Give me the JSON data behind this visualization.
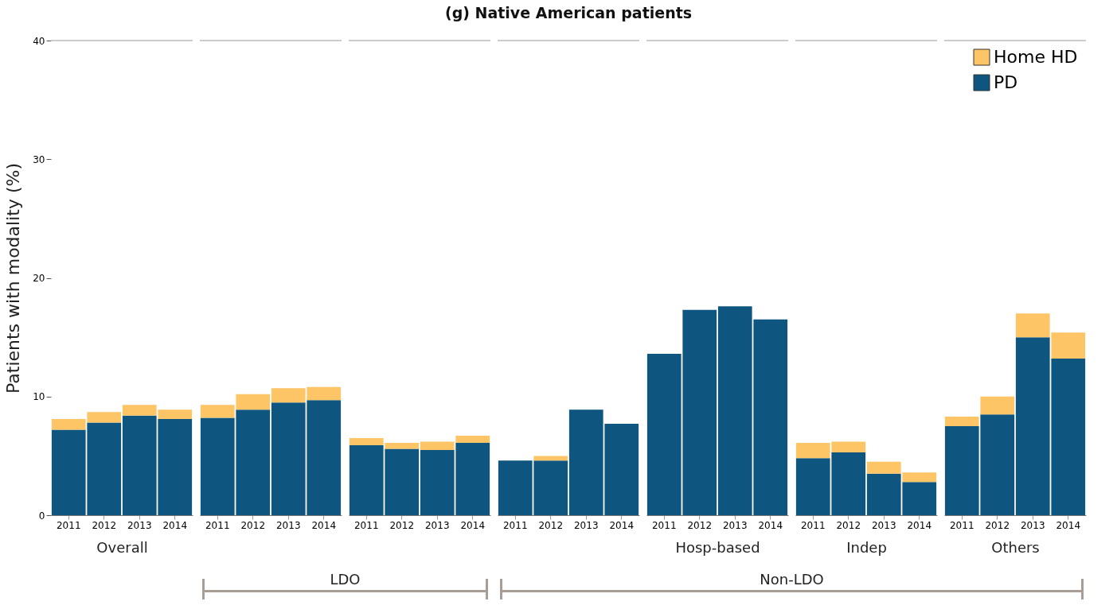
{
  "chart_data": [
    {
      "type": "bar",
      "stacked": true,
      "xlabel": "Overall",
      "ylabel": "Patients with modality (%)",
      "categories": [
        "2011",
        "2012",
        "2013",
        "2014"
      ],
      "ylim": [
        0,
        40
      ],
      "yticks": [
        0,
        10,
        20,
        30,
        40
      ],
      "grid": false,
      "legend": false,
      "ref_lines": [
        {
          "axis": "y",
          "value": 40,
          "color": "#bbbbbb"
        }
      ],
      "series": [
        {
          "color": "#0e5680",
          "values": [
            7.2,
            7.8,
            8.4,
            8.1
          ]
        },
        {
          "color": "#fdc566",
          "values": [
            0.9,
            0.9,
            0.9,
            0.8
          ]
        }
      ]
    },
    {
      "type": "bar",
      "stacked": true,
      "categories": [
        "2011",
        "2012",
        "2013",
        "2014"
      ],
      "ylim": [
        0,
        40
      ],
      "yticks": [
        0,
        10,
        20,
        30,
        40
      ],
      "tick_labels": "x",
      "grid": false,
      "legend": false,
      "annotations": [
        "LDO"
      ],
      "ref_lines": [
        {
          "axis": "y",
          "value": 40,
          "color": "#bbbbbb"
        }
      ],
      "series": [
        {
          "color": "#0e5680",
          "values": [
            8.2,
            8.9,
            9.5,
            9.7
          ]
        },
        {
          "color": "#fdc566",
          "values": [
            1.1,
            1.3,
            1.2,
            1.1
          ]
        }
      ]
    },
    {
      "type": "bar",
      "stacked": true,
      "categories": [
        "2011",
        "2012",
        "2013",
        "2014"
      ],
      "ylim": [
        0,
        40
      ],
      "yticks": [
        0,
        10,
        20,
        30,
        40
      ],
      "tick_labels": "x",
      "grid": false,
      "legend": false,
      "ref_lines": [
        {
          "axis": "y",
          "value": 40,
          "color": "#bbbbbb"
        }
      ],
      "series": [
        {
          "color": "#0e5680",
          "values": [
            5.9,
            5.6,
            5.5,
            6.1
          ]
        },
        {
          "color": "#fdc566",
          "values": [
            0.6,
            0.5,
            0.7,
            0.6
          ]
        }
      ]
    },
    {
      "type": "bar",
      "stacked": true,
      "title": "(g)   Native American patients",
      "categories": [
        "2011",
        "2012",
        "2013",
        "2014"
      ],
      "ylim": [
        0,
        40
      ],
      "yticks": [
        0,
        10,
        20,
        30,
        40
      ],
      "tick_labels": "x",
      "grid": false,
      "legend": false,
      "annotations": [
        "Non-LDO"
      ],
      "ref_lines": [
        {
          "axis": "y",
          "value": 40,
          "color": "#bbbbbb"
        }
      ],
      "series": [
        {
          "color": "#0e5680",
          "values": [
            4.6,
            4.6,
            8.9,
            7.7
          ]
        },
        {
          "color": "#fdc566",
          "values": [
            0,
            0.4,
            0,
            0
          ]
        }
      ]
    },
    {
      "type": "bar",
      "stacked": true,
      "xlabel": "Hosp-based",
      "categories": [
        "2011",
        "2012",
        "2013",
        "2014"
      ],
      "ylim": [
        0,
        40
      ],
      "yticks": [
        0,
        10,
        20,
        30,
        40
      ],
      "tick_labels": "x",
      "grid": false,
      "legend": false,
      "ref_lines": [
        {
          "axis": "y",
          "value": 40,
          "color": "#bbbbbb"
        }
      ],
      "series": [
        {
          "color": "#0e5680",
          "values": [
            13.6,
            17.3,
            17.6,
            16.5
          ]
        },
        {
          "color": "#fdc566",
          "values": [
            0,
            0,
            0,
            0
          ]
        }
      ]
    },
    {
      "type": "bar",
      "stacked": true,
      "xlabel": "Indep",
      "categories": [
        "2011",
        "2012",
        "2013",
        "2014"
      ],
      "ylim": [
        0,
        40
      ],
      "yticks": [
        0,
        10,
        20,
        30,
        40
      ],
      "tick_labels": "x",
      "grid": false,
      "legend": false,
      "ref_lines": [
        {
          "axis": "y",
          "value": 40,
          "color": "#bbbbbb"
        }
      ],
      "series": [
        {
          "color": "#0e5680",
          "values": [
            4.8,
            5.3,
            3.5,
            2.8
          ]
        },
        {
          "color": "#fdc566",
          "values": [
            1.3,
            0.9,
            1.0,
            0.8
          ]
        }
      ]
    },
    {
      "type": "bar",
      "stacked": true,
      "xlabel": "Others",
      "categories": [
        "2011",
        "2012",
        "2013",
        "2014"
      ],
      "ylim": [
        0,
        40
      ],
      "yticks": [
        0,
        10,
        20,
        30,
        40
      ],
      "tick_labels": "x",
      "grid": false,
      "legend": "top right",
      "ref_lines": [
        {
          "axis": "y",
          "value": 40,
          "color": "#bbbbbb"
        }
      ],
      "series": [
        {
          "name": "PD",
          "color": "#0e5680",
          "values": [
            7.5,
            8.5,
            15.0,
            13.2
          ]
        },
        {
          "name": "Home HD",
          "color": "#fdc566",
          "values": [
            0.8,
            1.5,
            2.0,
            2.2
          ]
        }
      ]
    }
  ]
}
